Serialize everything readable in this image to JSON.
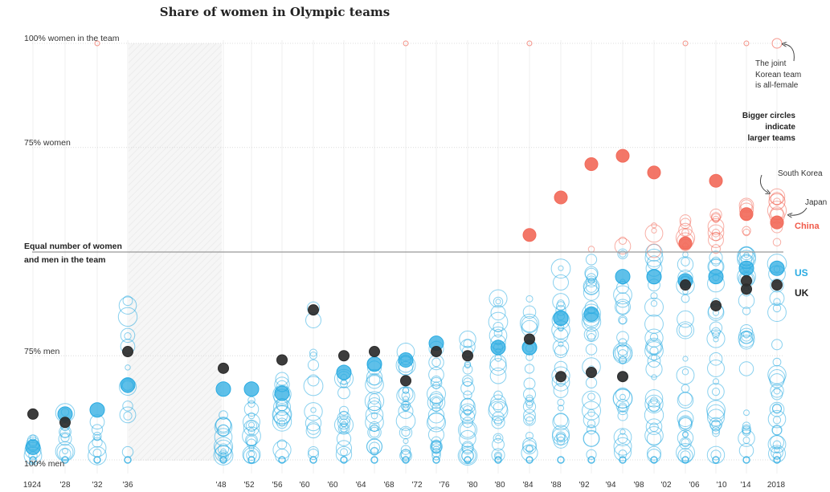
{
  "chart_data": {
    "type": "scatter",
    "title": "Share of women in Olympic teams",
    "xlabel": "",
    "ylabel": "Share of women in the team",
    "ylim": [
      0,
      100
    ],
    "y_ticks": [
      {
        "value": 100,
        "label": "100% women in the team"
      },
      {
        "value": 75,
        "label": "75% women"
      },
      {
        "value": 50,
        "label": "Equal number of women and men in the team"
      },
      {
        "value": 25,
        "label": "75% men"
      },
      {
        "value": 0,
        "label": "100% men"
      }
    ],
    "equal_line_label_1": "Equal number of women",
    "equal_line_label_2": "and men in the team",
    "categories": [
      "1924",
      "'28",
      "'32",
      "'36",
      "'48",
      "'52",
      "'56",
      "'60",
      "'60",
      "'64",
      "'68",
      "'72",
      "'76",
      "'80",
      "'80",
      "'84",
      "'88",
      "'92",
      "'94",
      "'98",
      "'02",
      "'06",
      "'10",
      "'14",
      "2018"
    ],
    "gap_period": "1940–1944 (no Games)",
    "colors": {
      "women_majority": "#f26b5b",
      "men_majority": "#29abe2",
      "uk": "#2b2b2b",
      "axis_text": "#333333"
    },
    "highlight_series": [
      {
        "name": "US",
        "color": "#29abe2",
        "values": {
          "1924": 3,
          "'28": 11,
          "'32": 12,
          "'36": 18,
          "'48": 17,
          "'52": 17,
          "'56": 16,
          "'60": null,
          "'64": 21,
          "'68": 23,
          "'72": 24,
          "'76": 28,
          "'80": 27,
          "'84": 27,
          "'88": 34,
          "'92": 35,
          "'96": 44,
          "'00": 44,
          "'04": 43,
          "'08": 44,
          "'12": 46,
          "'16": 46
        }
      },
      {
        "name": "UK",
        "color": "#2b2b2b",
        "values": {
          "1924": 11,
          "'28": 9,
          "'36": 26,
          "'48": 22,
          "'56": 24,
          "'60": 36,
          "'64": 25,
          "'68": 26,
          "'72": 19,
          "'76": 26,
          "'80": 25,
          "'84": 29,
          "'88": 20,
          "'92": 21,
          "'96": 20,
          "'00": 37,
          "'04": 42,
          "'08": 43,
          "'12": 41,
          "'16": 42
        }
      },
      {
        "name": "China",
        "color": "#f26b5b",
        "values": {
          "'84": 54,
          "'88": 63,
          "'92": 71,
          "'96": 73,
          "'00": 69,
          "'04": 52,
          "'08": 67,
          "'12": 59,
          "'16": 57
        }
      }
    ],
    "annotations": [
      {
        "text": "The joint Korean team is all-female",
        "lines": [
          "The joint",
          "Korean team",
          "is all-female"
        ]
      },
      {
        "text": "Bigger circles indicate larger teams",
        "lines": [
          "Bigger circles",
          "indicate",
          "larger teams"
        ]
      },
      {
        "text": "South Korea"
      },
      {
        "text": "Japan"
      }
    ],
    "legend_labels": {
      "us": "US",
      "uk": "UK",
      "china": "China"
    }
  }
}
